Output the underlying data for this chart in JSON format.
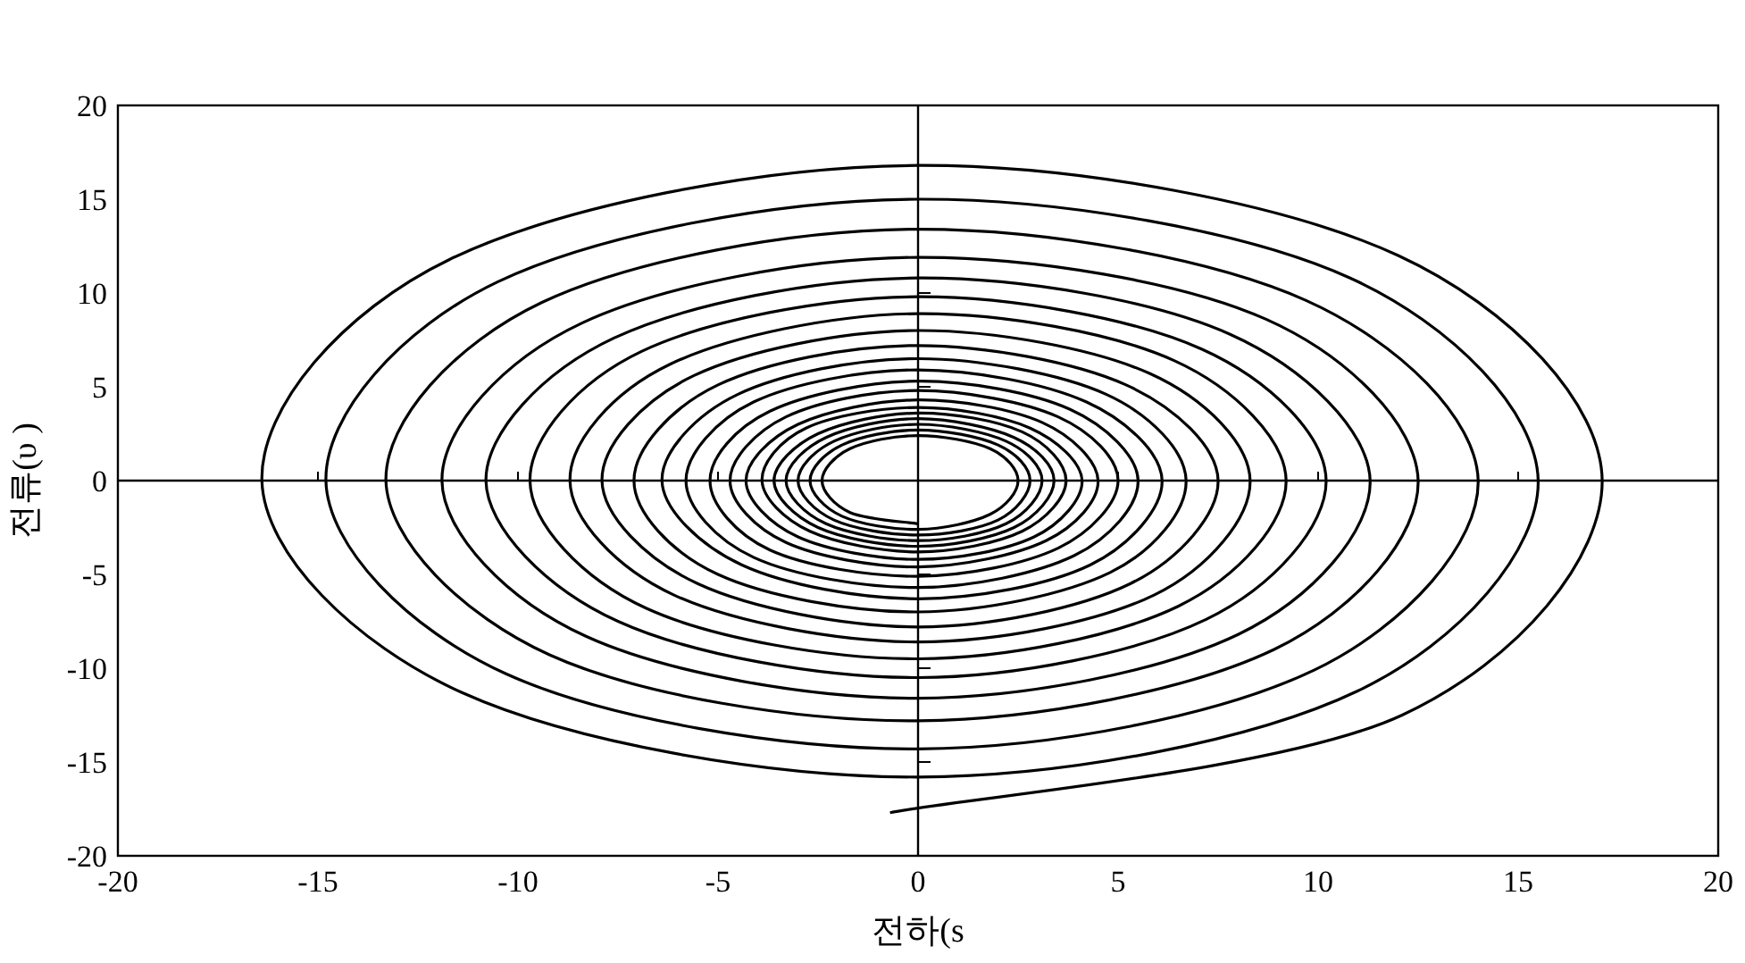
{
  "chart_data": {
    "type": "line",
    "xlabel": "전하(s",
    "ylabel": "전류(υ )",
    "xlim": [
      -20,
      20
    ],
    "ylim": [
      -20,
      20
    ],
    "xticks": [
      -20,
      -15,
      -10,
      -5,
      0,
      5,
      10,
      15,
      20
    ],
    "yticks": [
      -20,
      -15,
      -10,
      -5,
      0,
      5,
      10,
      15,
      20
    ],
    "series": [
      {
        "color": "#000000",
        "x": [
          -0.7,
          12.1,
          17.1,
          12.0,
          0,
          -11.7,
          -16.4,
          -11.4,
          0,
          11.0,
          15.5,
          10.8,
          0,
          -10.5,
          -14.8,
          -10.3,
          0,
          9.9,
          14.0,
          9.7,
          0,
          -9.4,
          -13.3,
          -9.2,
          0,
          8.9,
          12.5,
          8.7,
          0,
          -8.4,
          -11.9,
          -8.3,
          0,
          8.0,
          11.3,
          7.8,
          0,
          -7.6,
          -10.8,
          -7.5,
          0,
          7.2,
          10.2,
          7.1,
          0,
          -6.9,
          -9.7,
          -6.8,
          0,
          6.5,
          9.2,
          6.4,
          0,
          -6.2,
          -8.7,
          -6.1,
          0,
          5.9,
          8.3,
          5.8,
          0,
          -5.6,
          -7.9,
          -5.5,
          0,
          5.3,
          7.5,
          5.2,
          0,
          -5.0,
          -7.1,
          -5.0,
          0,
          4.8,
          6.7,
          4.7,
          0,
          -4.5,
          -6.4,
          -4.4,
          0,
          4.3,
          6.1,
          4.2,
          0,
          -4.1,
          -5.8,
          -4.1,
          0,
          3.9,
          5.5,
          3.8,
          0,
          -3.7,
          -5.2,
          -3.7,
          0,
          3.5,
          5.0,
          3.5,
          0,
          -3.3,
          -4.7,
          -3.3,
          0,
          3.2,
          4.5,
          3.1,
          0,
          -3.0,
          -4.3,
          -3.0,
          0,
          2.9,
          4.1,
          2.8,
          0,
          -2.8,
          -3.9,
          -2.7,
          0,
          2.6,
          3.7,
          2.6,
          0,
          -2.5,
          -3.6,
          -2.5,
          0,
          2.4,
          3.4,
          2.4,
          0,
          -2.3,
          -3.3,
          -2.3,
          0,
          2.2,
          3.1,
          2.2,
          0,
          -2.1,
          -3.0,
          -2.1,
          0,
          2.0,
          2.8,
          2.0,
          0,
          -1.9,
          -2.7,
          -1.9,
          0,
          1.8,
          2.5,
          1.8,
          0,
          -1.7,
          -2.4,
          -1.7,
          0
        ],
        "values": [
          -17.7,
          -12.5,
          0,
          12.0,
          16.8,
          11.8,
          0,
          -11.3,
          -15.8,
          -11.2,
          0,
          10.8,
          15.0,
          10.6,
          0,
          -10.3,
          -14.3,
          -10.1,
          0,
          9.6,
          13.4,
          9.5,
          0,
          -9.3,
          -12.8,
          -9.0,
          0,
          8.6,
          11.9,
          8.4,
          0,
          -8.3,
          -11.6,
          -8.2,
          0,
          7.8,
          10.8,
          7.6,
          0,
          -7.5,
          -10.5,
          -7.4,
          0,
          7.0,
          9.8,
          6.9,
          0,
          -6.8,
          -9.5,
          -6.7,
          0,
          6.4,
          8.9,
          6.2,
          0,
          -6.1,
          -8.6,
          -6.1,
          0,
          5.7,
          8.0,
          5.6,
          0,
          -5.5,
          -7.8,
          -5.5,
          0,
          5.1,
          7.2,
          5.1,
          0,
          -5.0,
          -7.0,
          -4.9,
          0,
          4.6,
          6.5,
          4.6,
          0,
          -4.5,
          -6.3,
          -4.5,
          0,
          4.2,
          5.9,
          4.2,
          0,
          -4.1,
          -5.7,
          -4.0,
          0,
          3.8,
          5.3,
          3.7,
          0,
          -3.7,
          -5.1,
          -3.6,
          0,
          3.4,
          4.8,
          3.4,
          0,
          -3.3,
          -4.6,
          -3.2,
          0,
          3.1,
          4.3,
          3.0,
          0,
          -3.0,
          -4.2,
          -3.0,
          0,
          2.8,
          3.9,
          2.8,
          0,
          -2.7,
          -3.8,
          -2.7,
          0,
          2.6,
          3.6,
          2.5,
          0,
          -2.5,
          -3.5,
          -2.5,
          0,
          2.3,
          3.3,
          2.3,
          0,
          -2.3,
          -3.2,
          -2.3,
          0,
          2.1,
          3.0,
          2.1,
          0,
          -2.1,
          -2.9,
          -2.1,
          0,
          1.9,
          2.7,
          1.9,
          0,
          -1.9,
          -2.6,
          -1.8,
          0,
          1.7,
          2.4,
          1.7,
          0,
          -1.7,
          -2.3
        ]
      }
    ]
  }
}
